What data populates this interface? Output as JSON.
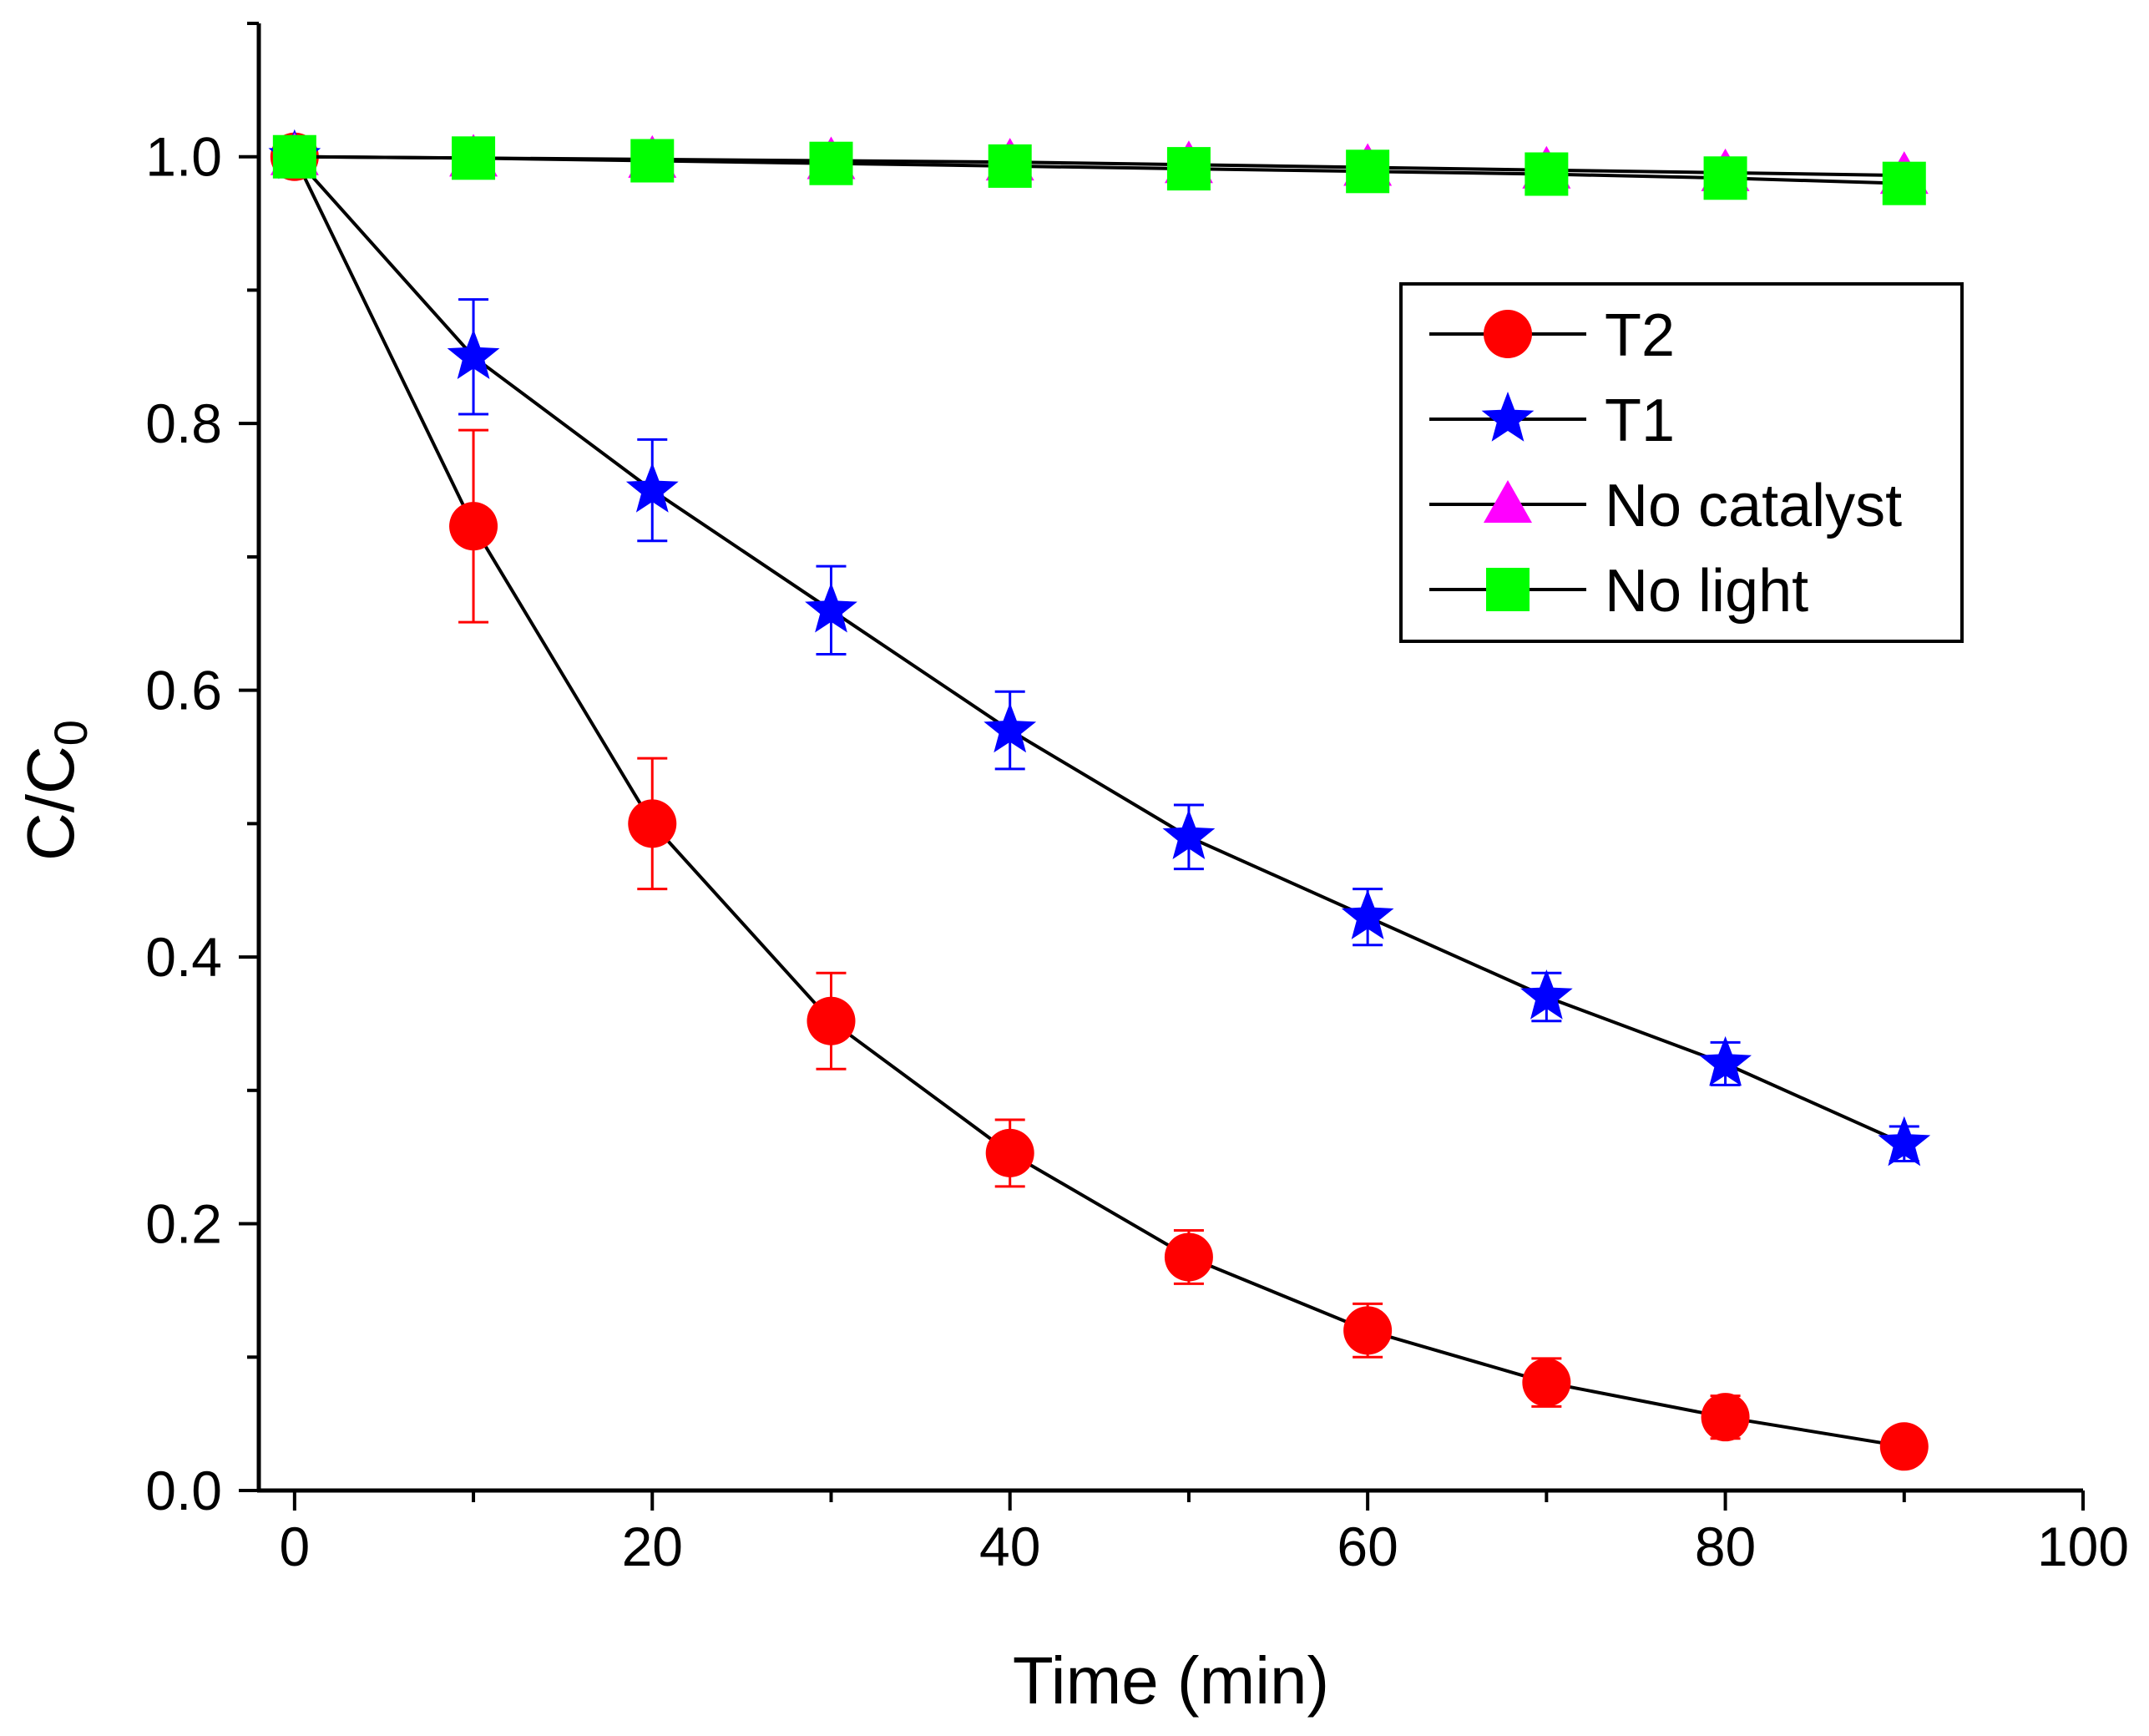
{
  "chart_data": {
    "type": "line",
    "title": "",
    "xlabel": "Time (min)",
    "ylabel": "C/C",
    "ylabel_subscript": "0",
    "xlim": [
      -2,
      100
    ],
    "ylim": [
      0,
      1.1
    ],
    "xticks": [
      0,
      20,
      40,
      60,
      80,
      100
    ],
    "yticks": [
      0.0,
      0.2,
      0.4,
      0.6,
      0.8,
      1.0
    ],
    "xtick_labels": [
      "0",
      "20",
      "40",
      "60",
      "80",
      "100"
    ],
    "ytick_labels": [
      "0.0",
      "0.2",
      "0.4",
      "0.6",
      "0.8",
      "1.0"
    ],
    "x": [
      0,
      10,
      20,
      30,
      40,
      50,
      60,
      70,
      80,
      90
    ],
    "legend_position": "upper-right",
    "series": [
      {
        "name": "T2",
        "marker": "circle",
        "color": "#ff0000",
        "values": [
          1.0,
          0.723,
          0.5,
          0.352,
          0.253,
          0.175,
          0.12,
          0.081,
          0.055,
          0.033
        ],
        "errors": [
          0,
          0.072,
          0.049,
          0.036,
          0.025,
          0.02,
          0.02,
          0.018,
          0.016,
          0.011
        ]
      },
      {
        "name": "T1",
        "marker": "star",
        "color": "#0000ff",
        "values": [
          1.0,
          0.85,
          0.75,
          0.66,
          0.57,
          0.49,
          0.43,
          0.37,
          0.32,
          0.26
        ],
        "errors": [
          0,
          0.043,
          0.038,
          0.033,
          0.029,
          0.024,
          0.021,
          0.018,
          0.016,
          0.013
        ]
      },
      {
        "name": "No catalyst",
        "marker": "triangle",
        "color": "#ff00ff",
        "values": [
          1.0,
          0.999,
          0.998,
          0.997,
          0.996,
          0.994,
          0.992,
          0.99,
          0.988,
          0.986
        ],
        "errors": [
          0,
          0,
          0,
          0,
          0,
          0,
          0,
          0,
          0,
          0
        ]
      },
      {
        "name": "No light",
        "marker": "square",
        "color": "#00ff00",
        "values": [
          1.0,
          0.999,
          0.997,
          0.995,
          0.993,
          0.991,
          0.989,
          0.987,
          0.984,
          0.98
        ],
        "errors": [
          0,
          0,
          0,
          0,
          0,
          0,
          0,
          0,
          0,
          0
        ]
      }
    ]
  }
}
